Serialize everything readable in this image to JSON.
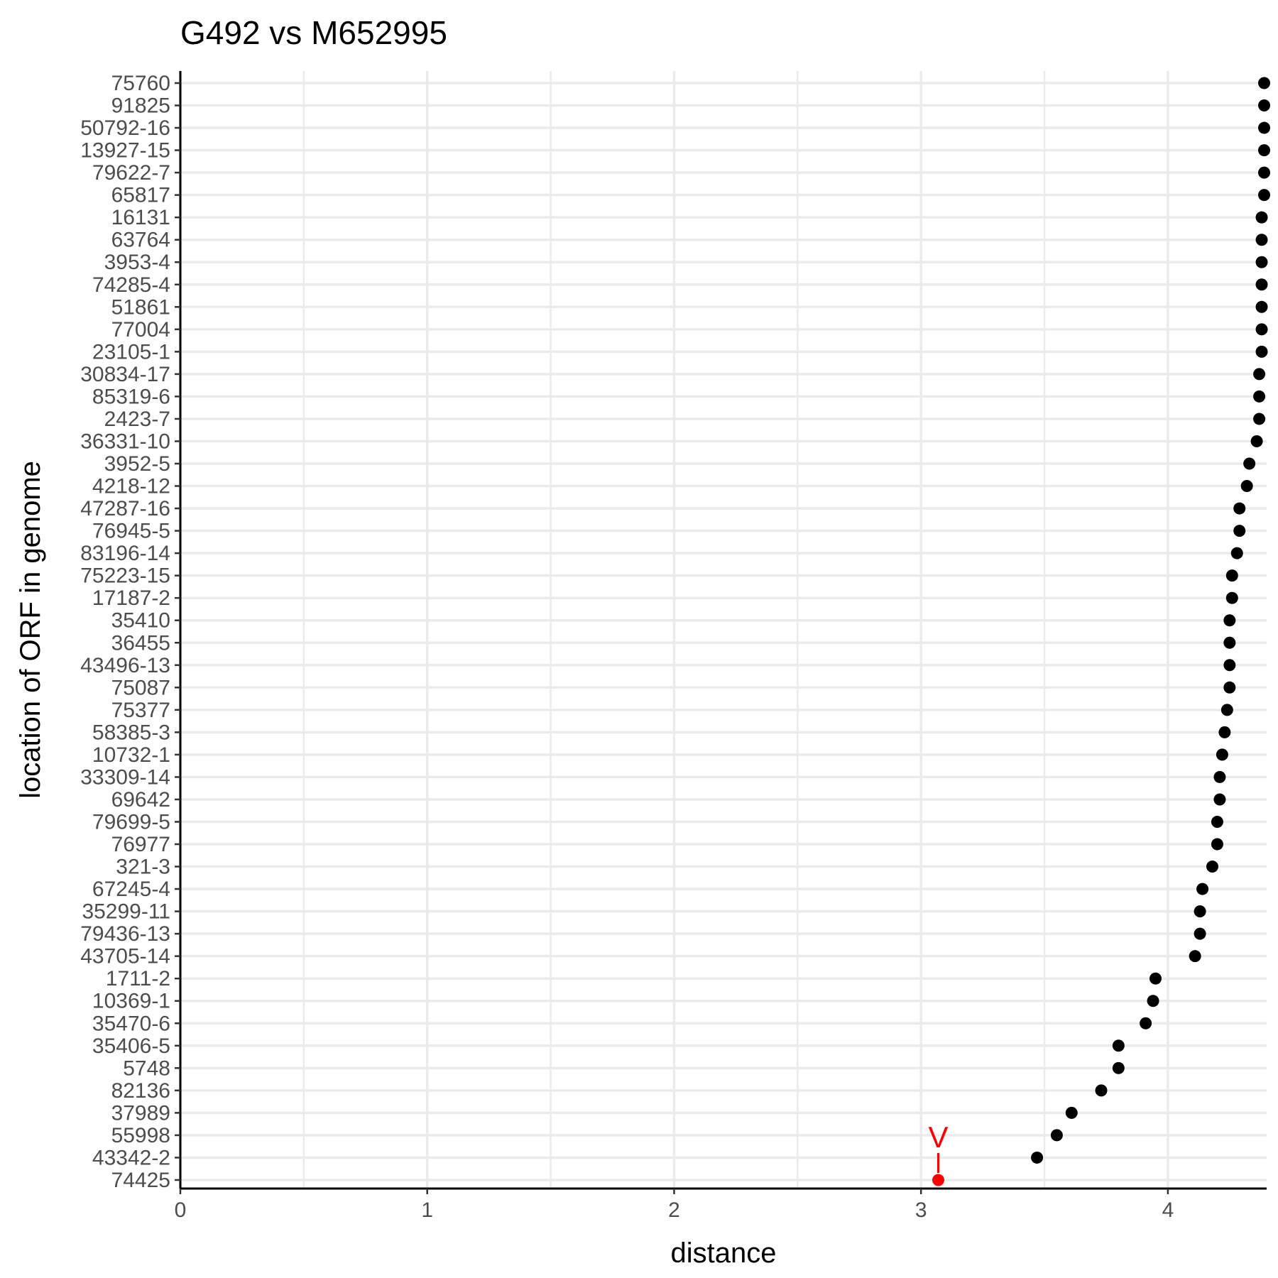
{
  "chart_data": {
    "type": "scatter",
    "title": "G492 vs M652995",
    "xlabel": "distance",
    "ylabel": "location of ORF in genome",
    "xlim": [
      0,
      4.4
    ],
    "x_ticks": [
      "0",
      "1",
      "2",
      "3",
      "4"
    ],
    "grid": true,
    "point_color": "#000000",
    "highlight_color": "#ff0000",
    "categories": [
      "75760",
      "91825",
      "50792-16",
      "13927-15",
      "79622-7",
      "65817",
      "16131",
      "63764",
      "3953-4",
      "74285-4",
      "51861",
      "77004",
      "23105-1",
      "30834-17",
      "85319-6",
      "2423-7",
      "36331-10",
      "3952-5",
      "4218-12",
      "47287-16",
      "76945-5",
      "83196-14",
      "75223-15",
      "17187-2",
      "35410",
      "36455",
      "43496-13",
      "75087",
      "75377",
      "58385-3",
      "10732-1",
      "33309-14",
      "69642",
      "79699-5",
      "76977",
      "321-3",
      "67245-4",
      "35299-11",
      "79436-13",
      "43705-14",
      "1711-2",
      "10369-1",
      "35470-6",
      "35406-5",
      "5748",
      "82136",
      "37989",
      "55998",
      "43342-2",
      "74425"
    ],
    "values": [
      4.39,
      4.39,
      4.39,
      4.39,
      4.39,
      4.39,
      4.38,
      4.38,
      4.38,
      4.38,
      4.38,
      4.38,
      4.38,
      4.37,
      4.37,
      4.37,
      4.36,
      4.33,
      4.32,
      4.29,
      4.29,
      4.28,
      4.26,
      4.26,
      4.25,
      4.25,
      4.25,
      4.25,
      4.24,
      4.23,
      4.22,
      4.21,
      4.21,
      4.2,
      4.2,
      4.18,
      4.14,
      4.13,
      4.13,
      4.11,
      3.95,
      3.94,
      3.91,
      3.8,
      3.8,
      3.73,
      3.61,
      3.55,
      3.47,
      3.07
    ],
    "highlight": {
      "category": "74425",
      "value": 3.07,
      "label": "V"
    }
  }
}
